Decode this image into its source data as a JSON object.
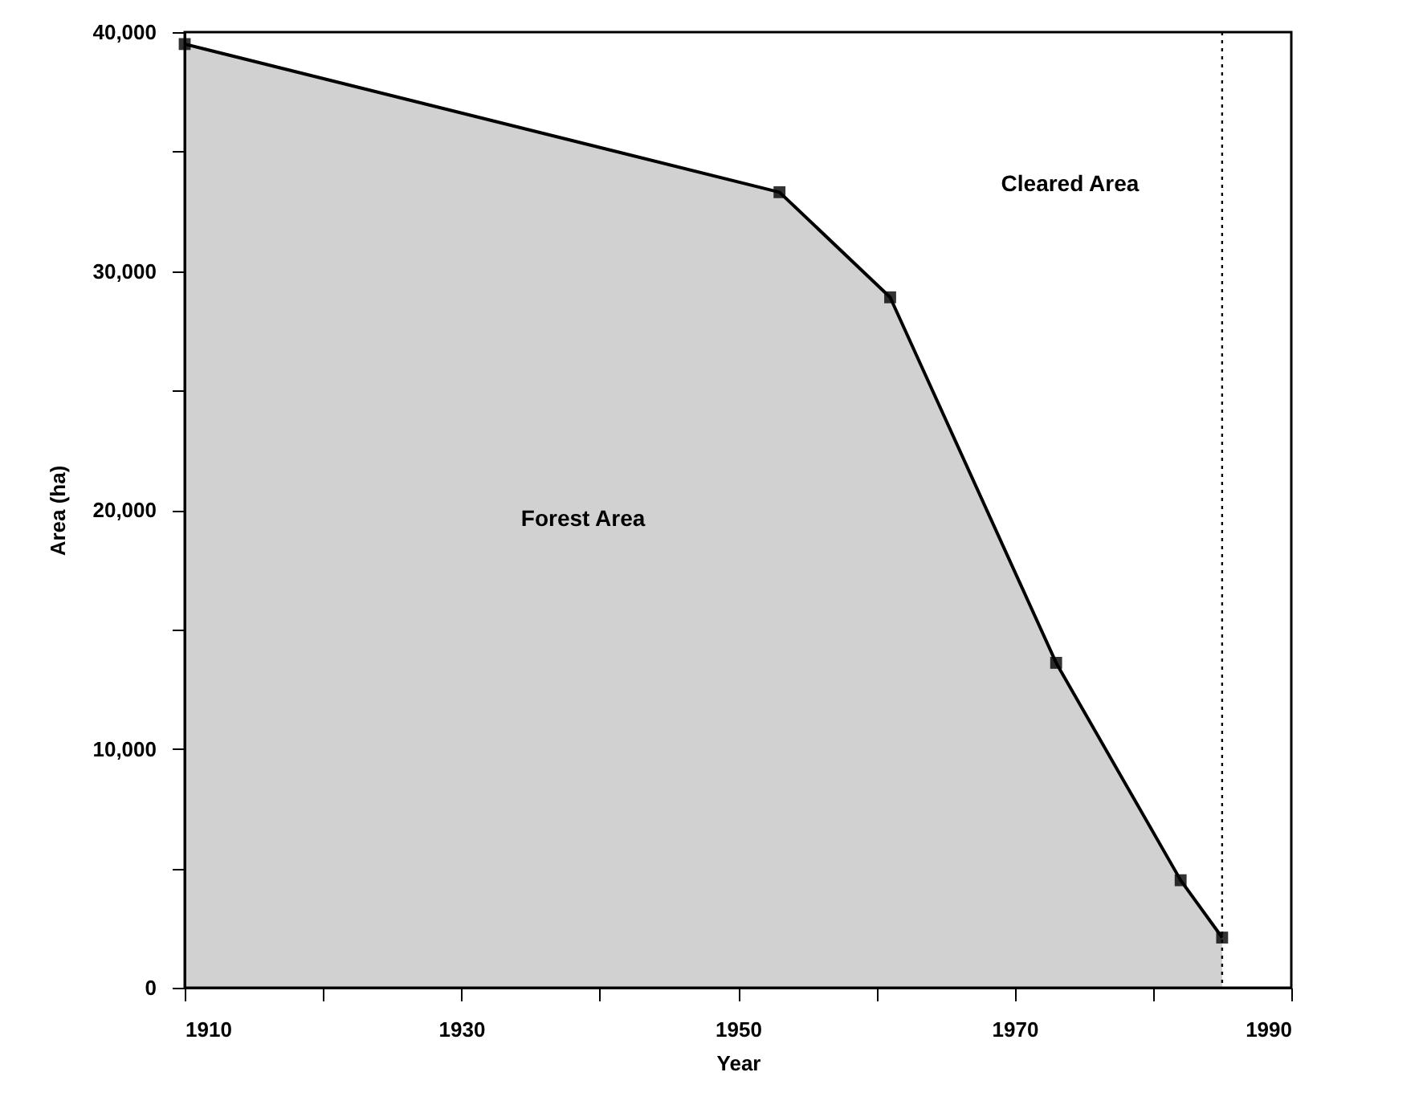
{
  "chart_data": {
    "type": "area",
    "xlabel": "Year",
    "ylabel": "Area (ha)",
    "x": [
      1910,
      1953,
      1961,
      1973,
      1982,
      1985
    ],
    "series": [
      {
        "color": "#000000",
        "values": [
          39500,
          33300,
          28900,
          13600,
          4500,
          2100
        ]
      }
    ],
    "xlim": [
      1910,
      1990
    ],
    "xticks": [
      1910,
      {
        "value": 1920,
        "label": null
      },
      1930,
      {
        "value": 1940,
        "label": null
      },
      1950,
      {
        "value": 1960,
        "label": null
      },
      1970,
      {
        "value": 1980,
        "label": null
      },
      1990
    ],
    "ylim": [
      0,
      40000
    ],
    "yticks": [
      {
        "value": 0,
        "label": "0"
      },
      {
        "value": 5000,
        "label": null
      },
      {
        "value": 10000,
        "label": "10,000"
      },
      {
        "value": 15000,
        "label": null
      },
      {
        "value": 20000,
        "label": "20,000"
      },
      {
        "value": 25000,
        "label": null
      },
      {
        "value": 30000,
        "label": "30,000"
      },
      {
        "value": 35000,
        "label": null
      },
      {
        "value": 40000,
        "label": "40,000"
      }
    ],
    "ref_lines": [
      {
        "axis": "x",
        "value": 1985,
        "color": "#000000",
        "line_style": "dotted"
      }
    ],
    "annotations": [
      "Forest Area",
      "Cleared Area"
    ],
    "marker": "square",
    "line_style": "solid",
    "grid": false
  }
}
